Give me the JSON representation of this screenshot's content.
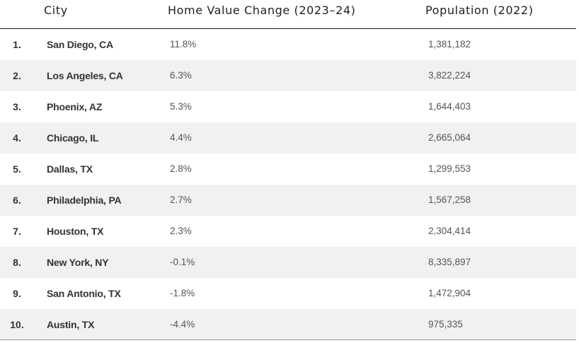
{
  "table": {
    "headers": {
      "city": "City",
      "change": "Home Value Change (2023–24)",
      "population": "Population (2022)"
    },
    "rows": [
      {
        "rank": "1.",
        "city": "San Diego, CA",
        "change": "11.8%",
        "population": "1,381,182"
      },
      {
        "rank": "2.",
        "city": "Los Angeles, CA",
        "change": "6.3%",
        "population": "3,822,224"
      },
      {
        "rank": "3.",
        "city": "Phoenix, AZ",
        "change": "5.3%",
        "population": "1,644,403"
      },
      {
        "rank": "4.",
        "city": "Chicago, IL",
        "change": "4.4%",
        "population": "2,665,064"
      },
      {
        "rank": "5.",
        "city": "Dallas, TX",
        "change": "2.8%",
        "population": "1,299,553"
      },
      {
        "rank": "6.",
        "city": "Philadelphia, PA",
        "change": "2.7%",
        "population": "1,567,258"
      },
      {
        "rank": "7.",
        "city": "Houston, TX",
        "change": "2.3%",
        "population": "2,304,414"
      },
      {
        "rank": "8.",
        "city": "New York, NY",
        "change": "-0.1%",
        "population": "8,335,897"
      },
      {
        "rank": "9.",
        "city": "San Antonio, TX",
        "change": "-1.8%",
        "population": "1,472,904"
      },
      {
        "rank": "10.",
        "city": "Austin, TX",
        "change": "-4.4%",
        "population": "975,335"
      }
    ]
  },
  "colors": {
    "row_shade": "#f1f1f1",
    "header_rule": "#222222",
    "text": "#333333"
  }
}
